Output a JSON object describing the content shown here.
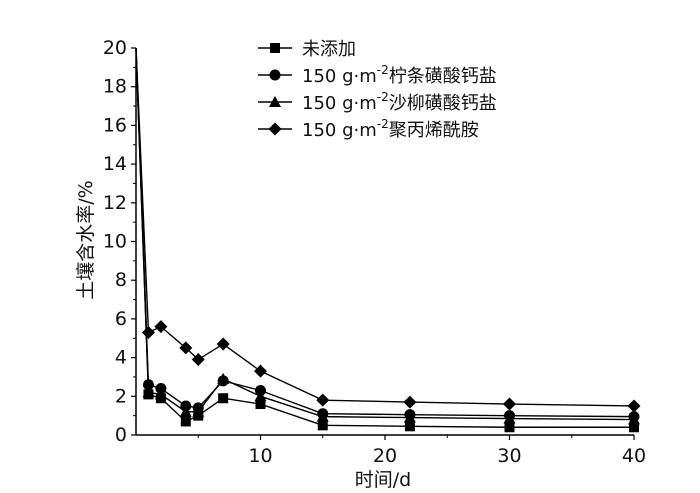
{
  "chart_data": {
    "type": "line",
    "xlabel": "时间/d",
    "ylabel": "土壤含水率/%",
    "xlim": [
      0,
      40
    ],
    "ylim": [
      0,
      20
    ],
    "xticks": [
      10,
      20,
      30,
      40
    ],
    "yticks": [
      0,
      2,
      4,
      6,
      8,
      10,
      12,
      14,
      16,
      18,
      20
    ],
    "x": [
      0,
      1,
      2,
      4,
      5,
      7,
      10,
      15,
      22,
      30,
      40
    ],
    "legend_position": "top-right",
    "grid": false,
    "series": [
      {
        "name": "未添加",
        "prefix": "",
        "sup": "",
        "suffix": "未添加",
        "marker": "square",
        "values": [
          20.0,
          2.1,
          1.9,
          0.7,
          1.0,
          1.9,
          1.6,
          0.5,
          0.45,
          0.4,
          0.4
        ]
      },
      {
        "name": "150 g·m-2柠条磺酸钙盐",
        "prefix": "150 g·m",
        "sup": "-2",
        "suffix": "柠条磺酸钙盐",
        "marker": "circle",
        "values": [
          20.0,
          2.6,
          2.4,
          1.5,
          1.4,
          2.8,
          2.3,
          1.1,
          1.05,
          1.0,
          0.95
        ]
      },
      {
        "name": "150 g·m-2沙柳磺酸钙盐",
        "prefix": "150 g·m",
        "sup": "-2",
        "suffix": "沙柳磺酸钙盐",
        "marker": "triangle",
        "values": [
          20.0,
          2.2,
          2.1,
          1.2,
          1.2,
          2.9,
          2.0,
          0.95,
          0.9,
          0.85,
          0.8
        ]
      },
      {
        "name": "150 g·m-2聚丙烯酰胺",
        "prefix": "150 g·m",
        "sup": "-2",
        "suffix": "聚丙烯酰胺",
        "marker": "diamond",
        "values": [
          20.0,
          5.3,
          5.6,
          4.5,
          3.9,
          4.7,
          3.3,
          1.8,
          1.7,
          1.6,
          1.5
        ]
      }
    ]
  }
}
